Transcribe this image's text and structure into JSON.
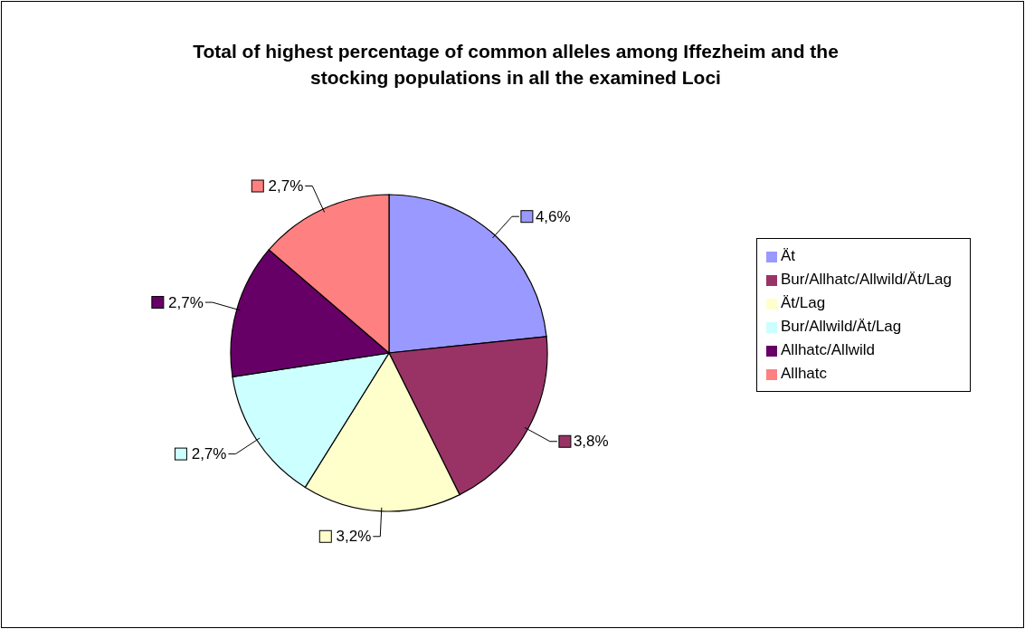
{
  "chart_data": {
    "type": "pie",
    "title": "Total of highest percentage of common alleles among Iffezheim and the stocking populations in all the examined Loci",
    "categories": [
      "Ät",
      "Bur/Allhatc/Allwild/Ät/Lag",
      "Ät/Lag",
      "Bur/Allwild/Ät/Lag",
      "Allhatc/Allwild",
      "Allhatc"
    ],
    "values": [
      4.6,
      3.8,
      3.2,
      2.7,
      2.7,
      2.7
    ],
    "value_labels": [
      "4,6%",
      "3,8%",
      "3,2%",
      "2,7%",
      "2,7%",
      "2,7%"
    ],
    "colors": [
      "#9999ff",
      "#993366",
      "#ffffcc",
      "#ccffff",
      "#660066",
      "#ff8080"
    ],
    "legend": "right"
  }
}
